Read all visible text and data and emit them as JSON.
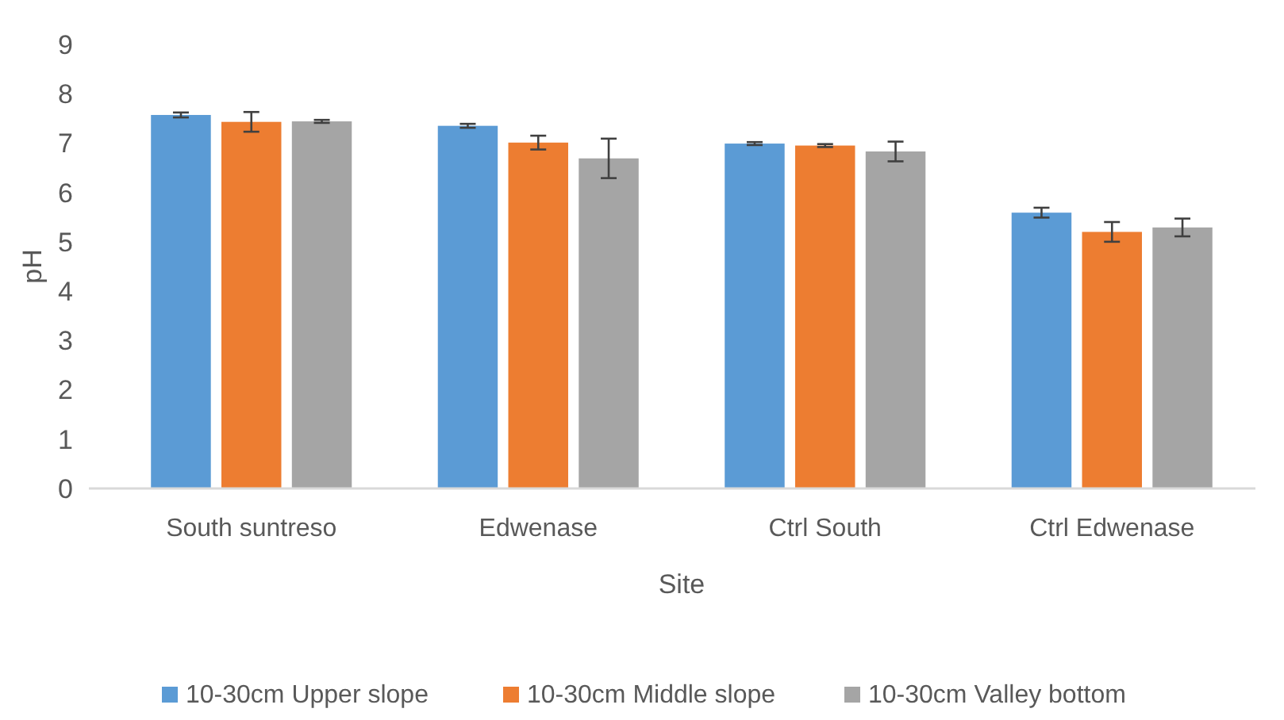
{
  "chart_data": {
    "type": "bar",
    "xlabel": "Site",
    "ylabel": "pH",
    "categories": [
      "South suntreso",
      "Edwenase",
      "Ctrl South",
      "Ctrl Edwenase"
    ],
    "series": [
      {
        "name": "10-30cm Upper slope",
        "color": "#5b9bd5",
        "values": [
          7.57,
          7.35,
          6.99,
          5.59
        ],
        "errors": [
          0.05,
          0.04,
          0.03,
          0.1
        ]
      },
      {
        "name": "10-30cm Middle slope",
        "color": "#ed7d31",
        "values": [
          7.43,
          7.01,
          6.95,
          5.2
        ],
        "errors": [
          0.2,
          0.14,
          0.03,
          0.2
        ]
      },
      {
        "name": "10-30cm Valley bottom",
        "color": "#a5a5a5",
        "values": [
          7.44,
          6.69,
          6.83,
          5.29
        ],
        "errors": [
          0.03,
          0.4,
          0.2,
          0.18
        ]
      }
    ],
    "ylim": [
      0,
      9
    ],
    "yticks": [
      0,
      1,
      2,
      3,
      4,
      5,
      6,
      7,
      8,
      9
    ],
    "grid": false,
    "legend": "bottom"
  }
}
